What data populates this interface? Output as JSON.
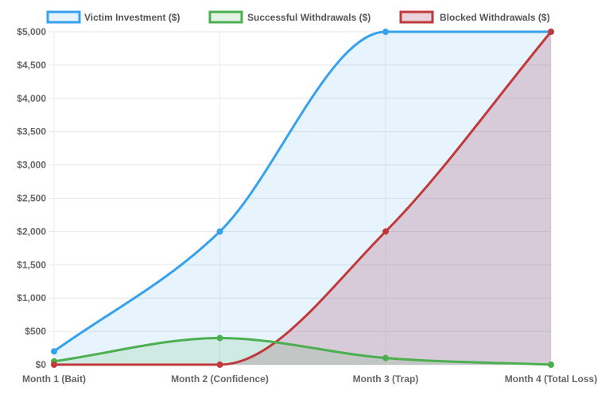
{
  "chart_data": {
    "type": "area",
    "categories": [
      "Month 1 (Bait)",
      "Month 2 (Confidence)",
      "Month 3 (Trap)",
      "Month 4 (Total Loss)"
    ],
    "series": [
      {
        "name": "Victim Investment ($)",
        "values": [
          200,
          2000,
          5000,
          5000
        ],
        "color": "#36A2EB",
        "fill": "rgba(54,162,235,0.12)"
      },
      {
        "name": "Successful Withdrawals ($)",
        "values": [
          50,
          400,
          100,
          0
        ],
        "color": "#4CAF50",
        "fill": "rgba(76,175,80,0.15)"
      },
      {
        "name": "Blocked Withdrawals ($)",
        "values": [
          0,
          0,
          2000,
          5000
        ],
        "color": "#C0393B",
        "fill": "rgba(170,80,110,0.25)"
      }
    ],
    "y_ticks": [
      "$0",
      "$500",
      "$1,000",
      "$1,500",
      "$2,000",
      "$2,500",
      "$3,000",
      "$3,500",
      "$4,000",
      "$4,500",
      "$5,000"
    ],
    "ylim": [
      0,
      5000
    ],
    "legend_position": "top",
    "grid": true
  }
}
